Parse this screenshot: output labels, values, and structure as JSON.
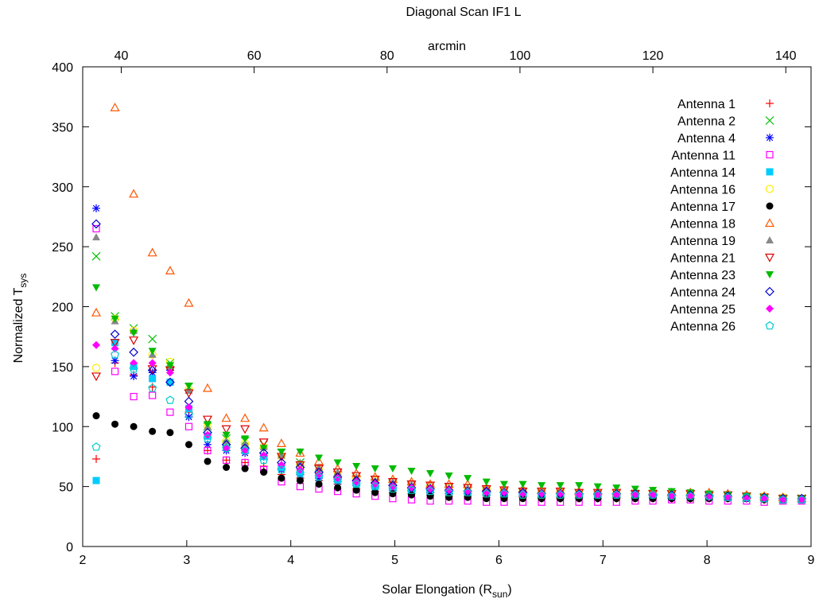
{
  "chart_data": {
    "type": "scatter",
    "title": "Diagonal Scan IF1 L",
    "xlabel": "Solar Elongation (R",
    "xlabel_sub": "sun",
    "xlabel_end": ")",
    "ylabel": "Normalized T",
    "ylabel_sub": "sys",
    "x2label": "arcmin",
    "xlim": [
      2,
      9
    ],
    "ylim": [
      0,
      400
    ],
    "x2lim": [
      34.2,
      143.8
    ],
    "xticks": [
      "2",
      "3",
      "4",
      "5",
      "6",
      "7",
      "8",
      "9"
    ],
    "yticks": [
      "0",
      "50",
      "100",
      "150",
      "200",
      "250",
      "300",
      "350",
      "400"
    ],
    "x2ticks": [
      "40",
      "60",
      "80",
      "100",
      "120",
      "140"
    ],
    "grid": false,
    "legend_position": "top-right",
    "x": [
      2.13,
      2.31,
      2.49,
      2.67,
      2.84,
      3.02,
      3.2,
      3.38,
      3.56,
      3.74,
      3.91,
      4.09,
      4.27,
      4.45,
      4.63,
      4.81,
      4.98,
      5.16,
      5.34,
      5.52,
      5.7,
      5.88,
      6.05,
      6.23,
      6.41,
      6.59,
      6.77,
      6.95,
      7.13,
      7.31,
      7.48,
      7.66,
      7.84,
      8.02,
      8.2,
      8.38,
      8.55,
      8.73,
      8.91
    ],
    "series": [
      {
        "name": "Antenna 1",
        "color": "#ff0000",
        "marker": "plus",
        "values": [
          73,
          153,
          143,
          133,
          147,
          112,
          80,
          72,
          70,
          67,
          60,
          57,
          55,
          52,
          48,
          46,
          45,
          44,
          43,
          42,
          42,
          41,
          41,
          41,
          40,
          40,
          40,
          40,
          40,
          40,
          40,
          40,
          40,
          40,
          40,
          40,
          39,
          39,
          39
        ]
      },
      {
        "name": "Antenna 2",
        "color": "#00c000",
        "marker": "x",
        "values": [
          242,
          192,
          182,
          173,
          153,
          133,
          100,
          90,
          88,
          85,
          78,
          70,
          64,
          60,
          56,
          53,
          52,
          50,
          48,
          47,
          47,
          46,
          45,
          45,
          44,
          44,
          44,
          43,
          44,
          44,
          44,
          43,
          43,
          42,
          42,
          41,
          41,
          40,
          40
        ]
      },
      {
        "name": "Antenna 4",
        "color": "#0000ff",
        "marker": "star",
        "values": [
          282,
          155,
          142,
          145,
          147,
          108,
          85,
          80,
          78,
          75,
          64,
          60,
          57,
          54,
          51,
          49,
          47,
          46,
          45,
          44,
          44,
          43,
          43,
          42,
          42,
          42,
          42,
          42,
          42,
          42,
          42,
          41,
          41,
          41,
          41,
          40,
          40,
          39,
          39
        ]
      },
      {
        "name": "Antenna 11",
        "color": "#ff00ff",
        "marker": "square",
        "values": [
          265,
          146,
          125,
          126,
          112,
          100,
          80,
          72,
          70,
          64,
          54,
          50,
          48,
          46,
          44,
          42,
          40,
          39,
          38,
          38,
          38,
          37,
          37,
          37,
          37,
          37,
          37,
          37,
          37,
          38,
          38,
          39,
          39,
          38,
          38,
          38,
          37,
          38,
          38
        ]
      },
      {
        "name": "Antenna 14",
        "color": "#00ccff",
        "marker": "square-filled",
        "values": [
          55,
          170,
          150,
          140,
          137,
          115,
          92,
          83,
          80,
          75,
          66,
          62,
          60,
          56,
          52,
          50,
          48,
          46,
          45,
          45,
          44,
          44,
          43,
          43,
          43,
          43,
          42,
          42,
          42,
          42,
          42,
          42,
          42,
          41,
          41,
          40,
          40,
          39,
          39
        ]
      },
      {
        "name": "Antenna 16",
        "color": "#ffee00",
        "marker": "circle",
        "values": [
          149,
          190,
          180,
          160,
          154,
          131,
          100,
          88,
          86,
          83,
          75,
          68,
          64,
          60,
          57,
          55,
          54,
          52,
          50,
          49,
          49,
          48,
          47,
          46,
          46,
          46,
          45,
          45,
          45,
          45,
          45,
          44,
          44,
          43,
          43,
          42,
          42,
          41,
          40
        ]
      },
      {
        "name": "Antenna 17",
        "color": "#000000",
        "marker": "circle-filled",
        "values": [
          109,
          102,
          100,
          96,
          95,
          85,
          71,
          66,
          65,
          62,
          57,
          55,
          52,
          49,
          47,
          45,
          44,
          43,
          42,
          41,
          41,
          40,
          40,
          40,
          40,
          40,
          40,
          40,
          40,
          40,
          40,
          40,
          40,
          40,
          40,
          40,
          39,
          39,
          39
        ]
      },
      {
        "name": "Antenna 18",
        "color": "#ff5500",
        "marker": "triangle",
        "values": [
          195,
          366,
          294,
          245,
          230,
          203,
          132,
          107,
          107,
          99,
          86,
          78,
          71,
          65,
          61,
          58,
          56,
          54,
          52,
          52,
          52,
          49,
          48,
          48,
          47,
          47,
          46,
          46,
          46,
          46,
          46,
          45,
          45,
          45,
          44,
          43,
          42,
          41,
          40
        ]
      },
      {
        "name": "Antenna 19",
        "color": "#888888",
        "marker": "triangle-filled",
        "values": [
          258,
          188,
          180,
          160,
          150,
          130,
          100,
          88,
          86,
          83,
          76,
          70,
          66,
          62,
          58,
          55,
          54,
          52,
          50,
          49,
          49,
          48,
          47,
          46,
          46,
          46,
          45,
          45,
          45,
          45,
          45,
          44,
          44,
          43,
          43,
          42,
          42,
          41,
          40
        ]
      },
      {
        "name": "Antenna 21",
        "color": "#dd0000",
        "marker": "triangle-down",
        "values": [
          142,
          170,
          172,
          148,
          147,
          128,
          106,
          98,
          98,
          87,
          75,
          68,
          65,
          62,
          59,
          56,
          54,
          52,
          51,
          50,
          49,
          48,
          47,
          46,
          46,
          46,
          45,
          45,
          45,
          44,
          44,
          44,
          44,
          43,
          43,
          42,
          41,
          40,
          40
        ]
      },
      {
        "name": "Antenna 23",
        "color": "#00bb00",
        "marker": "triangle-down-filled",
        "values": [
          216,
          190,
          178,
          163,
          151,
          134,
          102,
          93,
          90,
          82,
          79,
          79,
          74,
          70,
          67,
          65,
          65,
          63,
          61,
          59,
          57,
          54,
          52,
          52,
          51,
          51,
          51,
          50,
          49,
          48,
          47,
          46,
          45,
          44,
          43,
          42,
          41,
          40,
          40
        ]
      },
      {
        "name": "Antenna 24",
        "color": "#0000cc",
        "marker": "diamond",
        "values": [
          269,
          177,
          162,
          147,
          137,
          121,
          95,
          85,
          82,
          78,
          70,
          66,
          62,
          58,
          55,
          53,
          51,
          49,
          48,
          47,
          46,
          46,
          45,
          45,
          44,
          44,
          44,
          44,
          44,
          44,
          43,
          43,
          43,
          42,
          42,
          41,
          41,
          40,
          40
        ]
      },
      {
        "name": "Antenna 25",
        "color": "#ff00ff",
        "marker": "diamond-filled",
        "values": [
          168,
          165,
          153,
          153,
          145,
          116,
          93,
          82,
          80,
          76,
          68,
          64,
          60,
          57,
          54,
          52,
          50,
          49,
          48,
          47,
          46,
          45,
          45,
          44,
          44,
          44,
          43,
          43,
          43,
          43,
          43,
          42,
          42,
          41,
          41,
          40,
          40,
          39,
          39
        ]
      },
      {
        "name": "Antenna 26",
        "color": "#00cccc",
        "marker": "pentagon",
        "values": [
          83,
          160,
          148,
          132,
          122,
          110,
          90,
          82,
          80,
          72,
          64,
          61,
          58,
          55,
          52,
          50,
          48,
          47,
          46,
          45,
          45,
          44,
          44,
          43,
          43,
          43,
          43,
          43,
          43,
          43,
          43,
          42,
          42,
          42,
          41,
          41,
          40,
          39,
          39
        ]
      }
    ]
  }
}
